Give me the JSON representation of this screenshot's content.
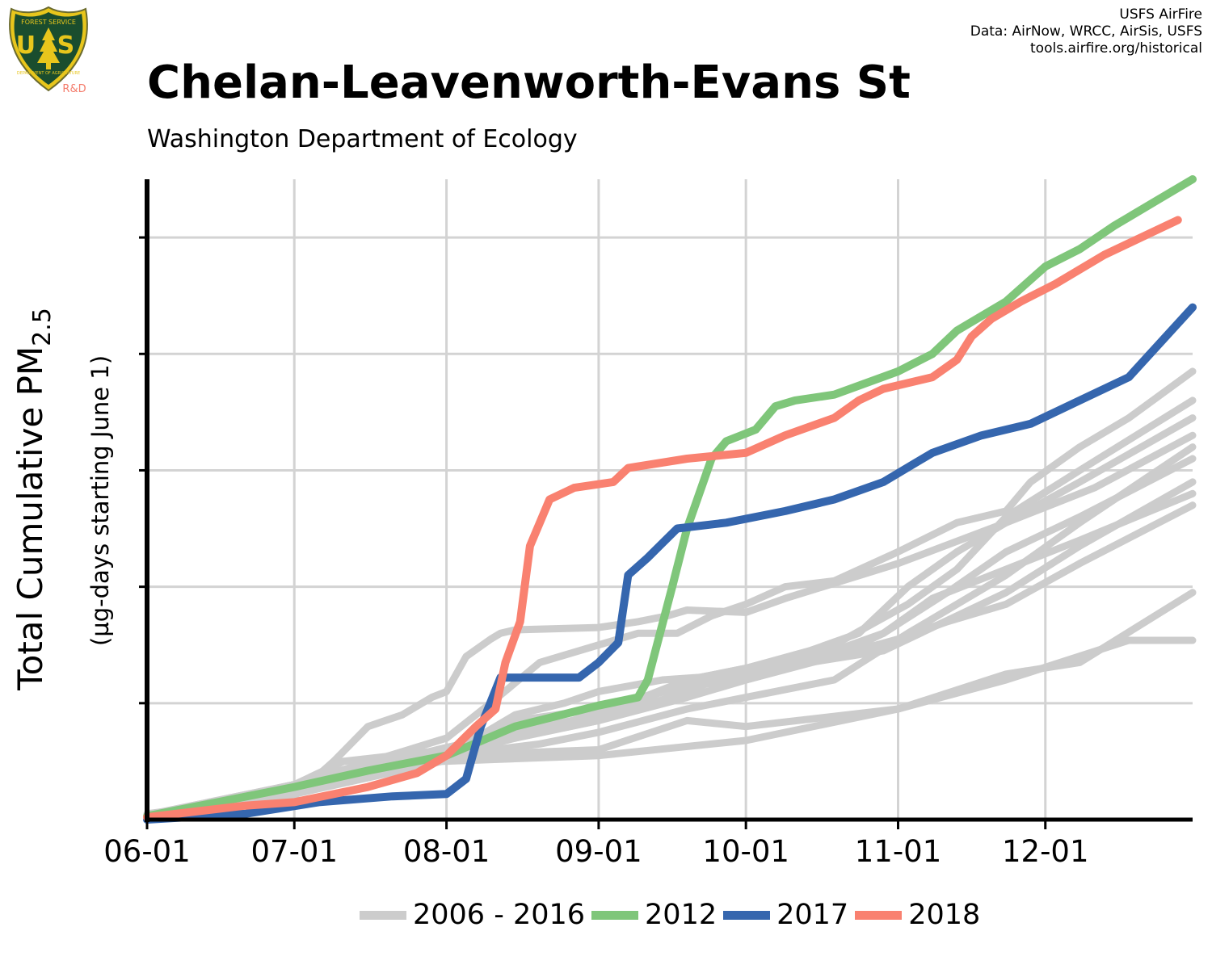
{
  "logo": {
    "top_text": "FOREST SERVICE",
    "letters": "U S",
    "bottom_text": "DEPARTMENT OF AGRICULTURE",
    "badge": "R&D",
    "colors": {
      "shield": "#1a4d2e",
      "gold": "#e8c61c",
      "badge": "#f47b6b"
    }
  },
  "credits": [
    "USFS AirFire",
    "Data: AirNow, WRCC, AirSis, USFS",
    "tools.airfire.org/historical"
  ],
  "title": "Chelan-Leavenworth-Evans St",
  "subtitle": "Washington Department of Ecology",
  "chart_data": {
    "type": "line",
    "title": "Chelan-Leavenworth-Evans St",
    "ylabel": "Total Cumulative PM2.5",
    "ylabel_main": "Total Cumulative PM",
    "ylabel_sub": "2.5",
    "ylabel_note": "(µg-days starting June 1)",
    "xlabel": "",
    "x_ticks": [
      "06-01",
      "07-01",
      "08-01",
      "09-01",
      "10-01",
      "11-01",
      "12-01"
    ],
    "x_tick_days": [
      0,
      30,
      61,
      92,
      122,
      153,
      183
    ],
    "xlim": [
      0,
      213
    ],
    "ylim": [
      0,
      5.5
    ],
    "y_ticks": [
      0,
      1,
      2,
      3,
      4,
      5
    ],
    "y_tick_labels_shown": false,
    "grid": true,
    "legend_position": "bottom",
    "legend": [
      {
        "label": "2006 - 2016",
        "color": "#cccccc"
      },
      {
        "label": "2012",
        "color": "#7fc67a"
      },
      {
        "label": "2017",
        "color": "#3566ae"
      },
      {
        "label": "2018",
        "color": "#f98170"
      }
    ],
    "series": [
      {
        "group": "2006 - 2016",
        "color": "#cccccc",
        "points": [
          [
            0,
            0.05
          ],
          [
            30,
            0.22
          ],
          [
            60,
            0.5
          ],
          [
            92,
            0.55
          ],
          [
            122,
            0.68
          ],
          [
            153,
            0.95
          ],
          [
            175,
            1.25
          ],
          [
            190,
            1.35
          ],
          [
            213,
            1.95
          ]
        ]
      },
      {
        "group": "2006 - 2016",
        "color": "#cccccc",
        "points": [
          [
            0,
            0.03
          ],
          [
            30,
            0.25
          ],
          [
            45,
            0.4
          ],
          [
            61,
            0.55
          ],
          [
            92,
            0.6
          ],
          [
            110,
            0.85
          ],
          [
            122,
            0.8
          ],
          [
            153,
            0.95
          ],
          [
            175,
            1.2
          ],
          [
            200,
            1.54
          ],
          [
            213,
            1.54
          ]
        ]
      },
      {
        "group": "2006 - 2016",
        "color": "#cccccc",
        "points": [
          [
            0,
            0.04
          ],
          [
            20,
            0.15
          ],
          [
            30,
            0.2
          ],
          [
            38,
            0.5
          ],
          [
            45,
            0.8
          ],
          [
            52,
            0.9
          ],
          [
            58,
            1.05
          ],
          [
            61,
            1.1
          ],
          [
            65,
            1.4
          ],
          [
            70,
            1.55
          ],
          [
            72,
            1.6
          ],
          [
            75,
            1.63
          ],
          [
            92,
            1.65
          ],
          [
            100,
            1.7
          ],
          [
            106,
            1.75
          ],
          [
            110,
            1.8
          ],
          [
            122,
            1.78
          ],
          [
            130,
            1.9
          ],
          [
            153,
            2.2
          ],
          [
            175,
            2.55
          ],
          [
            193,
            2.85
          ],
          [
            213,
            3.3
          ]
        ]
      },
      {
        "group": "2006 - 2016",
        "color": "#cccccc",
        "points": [
          [
            0,
            0.03
          ],
          [
            30,
            0.3
          ],
          [
            45,
            0.45
          ],
          [
            61,
            0.55
          ],
          [
            75,
            0.7
          ],
          [
            80,
            0.8
          ],
          [
            92,
            0.85
          ],
          [
            110,
            1.05
          ],
          [
            122,
            1.2
          ],
          [
            140,
            1.4
          ],
          [
            153,
            1.55
          ],
          [
            163,
            1.7
          ],
          [
            175,
            1.85
          ],
          [
            190,
            2.2
          ],
          [
            213,
            2.7
          ]
        ]
      },
      {
        "group": "2006 - 2016",
        "color": "#cccccc",
        "points": [
          [
            0,
            0.03
          ],
          [
            30,
            0.3
          ],
          [
            61,
            0.55
          ],
          [
            75,
            0.9
          ],
          [
            85,
            1.0
          ],
          [
            92,
            1.1
          ],
          [
            105,
            1.2
          ],
          [
            122,
            1.25
          ],
          [
            140,
            1.4
          ],
          [
            150,
            1.6
          ],
          [
            160,
            1.9
          ],
          [
            175,
            2.15
          ],
          [
            190,
            2.4
          ],
          [
            213,
            2.8
          ]
        ]
      },
      {
        "group": "2006 - 2016",
        "color": "#cccccc",
        "points": [
          [
            0,
            0.03
          ],
          [
            30,
            0.3
          ],
          [
            40,
            0.5
          ],
          [
            61,
            0.6
          ],
          [
            75,
            0.85
          ],
          [
            92,
            0.95
          ],
          [
            110,
            1.15
          ],
          [
            122,
            1.2
          ],
          [
            135,
            1.35
          ],
          [
            150,
            1.45
          ],
          [
            160,
            1.65
          ],
          [
            175,
            1.95
          ],
          [
            190,
            2.35
          ],
          [
            213,
            2.9
          ]
        ]
      },
      {
        "group": "2006 - 2016",
        "color": "#cccccc",
        "points": [
          [
            0,
            0.03
          ],
          [
            30,
            0.3
          ],
          [
            61,
            0.55
          ],
          [
            80,
            0.65
          ],
          [
            92,
            0.75
          ],
          [
            110,
            0.95
          ],
          [
            122,
            1.05
          ],
          [
            140,
            1.2
          ],
          [
            155,
            1.6
          ],
          [
            165,
            1.85
          ],
          [
            175,
            2.1
          ],
          [
            190,
            2.55
          ],
          [
            213,
            3.2
          ]
        ]
      },
      {
        "group": "2006 - 2016",
        "color": "#cccccc",
        "points": [
          [
            0,
            0.03
          ],
          [
            30,
            0.3
          ],
          [
            61,
            0.6
          ],
          [
            75,
            0.7
          ],
          [
            92,
            0.85
          ],
          [
            110,
            1.1
          ],
          [
            122,
            1.3
          ],
          [
            135,
            1.4
          ],
          [
            140,
            1.45
          ],
          [
            150,
            1.6
          ],
          [
            163,
            1.95
          ],
          [
            175,
            2.3
          ],
          [
            190,
            2.6
          ],
          [
            213,
            3.1
          ]
        ]
      },
      {
        "group": "2006 - 2016",
        "color": "#cccccc",
        "points": [
          [
            0,
            0.04
          ],
          [
            30,
            0.3
          ],
          [
            61,
            0.7
          ],
          [
            70,
            1.0
          ],
          [
            80,
            1.35
          ],
          [
            92,
            1.5
          ],
          [
            100,
            1.6
          ],
          [
            108,
            1.6
          ],
          [
            115,
            1.75
          ],
          [
            122,
            1.85
          ],
          [
            130,
            2.0
          ],
          [
            140,
            2.05
          ],
          [
            153,
            2.3
          ],
          [
            165,
            2.55
          ],
          [
            175,
            2.65
          ],
          [
            180,
            2.9
          ],
          [
            190,
            3.2
          ],
          [
            200,
            3.45
          ],
          [
            213,
            3.85
          ]
        ]
      },
      {
        "group": "2006 - 2016",
        "color": "#cccccc",
        "points": [
          [
            0,
            0.03
          ],
          [
            30,
            0.3
          ],
          [
            61,
            0.58
          ],
          [
            92,
            0.85
          ],
          [
            110,
            1.2
          ],
          [
            122,
            1.3
          ],
          [
            135,
            1.45
          ],
          [
            145,
            1.6
          ],
          [
            155,
            2.0
          ],
          [
            165,
            2.3
          ],
          [
            175,
            2.55
          ],
          [
            190,
            2.9
          ],
          [
            213,
            3.45
          ]
        ]
      },
      {
        "group": "2006 - 2016",
        "color": "#cccccc",
        "points": [
          [
            0,
            0.04
          ],
          [
            30,
            0.3
          ],
          [
            61,
            0.62
          ],
          [
            92,
            0.9
          ],
          [
            110,
            1.2
          ],
          [
            122,
            1.3
          ],
          [
            140,
            1.5
          ],
          [
            155,
            1.85
          ],
          [
            165,
            2.15
          ],
          [
            175,
            2.6
          ],
          [
            190,
            3.0
          ],
          [
            213,
            3.6
          ]
        ]
      },
      {
        "name": "2012",
        "color": "#7fc67a",
        "points": [
          [
            0,
            0.03
          ],
          [
            30,
            0.28
          ],
          [
            45,
            0.42
          ],
          [
            61,
            0.55
          ],
          [
            75,
            0.8
          ],
          [
            92,
            0.98
          ],
          [
            100,
            1.05
          ],
          [
            102,
            1.2
          ],
          [
            107,
            2.0
          ],
          [
            110,
            2.5
          ],
          [
            115,
            3.1
          ],
          [
            118,
            3.25
          ],
          [
            124,
            3.35
          ],
          [
            128,
            3.55
          ],
          [
            132,
            3.6
          ],
          [
            140,
            3.65
          ],
          [
            153,
            3.85
          ],
          [
            160,
            4.0
          ],
          [
            165,
            4.2
          ],
          [
            175,
            4.45
          ],
          [
            183,
            4.75
          ],
          [
            190,
            4.9
          ],
          [
            197,
            5.1
          ],
          [
            205,
            5.3
          ],
          [
            213,
            5.5
          ]
        ]
      },
      {
        "name": "2017",
        "color": "#3566ae",
        "points": [
          [
            0,
            0
          ],
          [
            20,
            0.05
          ],
          [
            35,
            0.15
          ],
          [
            50,
            0.2
          ],
          [
            61,
            0.22
          ],
          [
            65,
            0.35
          ],
          [
            68,
            0.8
          ],
          [
            72,
            1.22
          ],
          [
            88,
            1.22
          ],
          [
            92,
            1.35
          ],
          [
            96,
            1.52
          ],
          [
            98,
            2.1
          ],
          [
            102,
            2.25
          ],
          [
            108,
            2.5
          ],
          [
            118,
            2.55
          ],
          [
            130,
            2.65
          ],
          [
            140,
            2.75
          ],
          [
            150,
            2.9
          ],
          [
            156,
            3.05
          ],
          [
            160,
            3.15
          ],
          [
            170,
            3.3
          ],
          [
            180,
            3.4
          ],
          [
            190,
            3.6
          ],
          [
            200,
            3.8
          ],
          [
            213,
            4.4
          ]
        ]
      },
      {
        "name": "2018",
        "color": "#f98170",
        "points": [
          [
            0,
            0.02
          ],
          [
            20,
            0.12
          ],
          [
            30,
            0.15
          ],
          [
            45,
            0.28
          ],
          [
            55,
            0.4
          ],
          [
            61,
            0.55
          ],
          [
            67,
            0.8
          ],
          [
            71,
            0.95
          ],
          [
            73,
            1.35
          ],
          [
            76,
            1.7
          ],
          [
            78,
            2.35
          ],
          [
            82,
            2.75
          ],
          [
            87,
            2.85
          ],
          [
            95,
            2.9
          ],
          [
            98,
            3.02
          ],
          [
            110,
            3.1
          ],
          [
            122,
            3.15
          ],
          [
            130,
            3.3
          ],
          [
            140,
            3.45
          ],
          [
            145,
            3.6
          ],
          [
            150,
            3.7
          ],
          [
            160,
            3.8
          ],
          [
            165,
            3.95
          ],
          [
            168,
            4.15
          ],
          [
            172,
            4.3
          ],
          [
            178,
            4.45
          ],
          [
            185,
            4.6
          ],
          [
            195,
            4.85
          ],
          [
            205,
            5.05
          ],
          [
            210,
            5.15
          ]
        ]
      }
    ]
  }
}
